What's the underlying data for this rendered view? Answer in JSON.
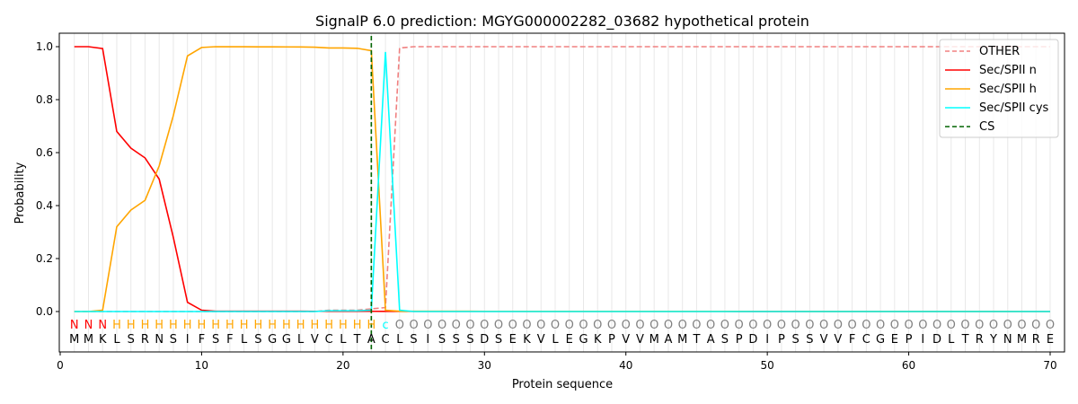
{
  "chart_data": {
    "type": "line",
    "title": "SignalP 6.0 prediction: MGYG000002282_03682 hypothetical protein",
    "xlabel": "Protein sequence",
    "ylabel": "Probability",
    "xlim": [
      0,
      71
    ],
    "ylim": [
      -0.15,
      1.05
    ],
    "xticks": [
      0,
      10,
      20,
      30,
      40,
      50,
      60,
      70
    ],
    "yticks": [
      "0.0",
      "0.2",
      "0.4",
      "0.6",
      "0.8",
      "1.0"
    ],
    "legend_position": "top-right",
    "sequence": "MMKLSRNSIFSFLSGGLVCLTACLSISSSDSEKVLEGKPVVMAMTASPDIPSSVVFCGEPIDLTRYNMRE",
    "labels": "NNNHHHHHHHHHHHHHHHHHHHcOOOOOOOOOOOOOOOOOOOOOOOOOOOOOOOOOOOOOOOOOOOOOOO",
    "label_colors": {
      "N": "#ff0000",
      "H": "#ffa500",
      "c": "#00ffff",
      "O": "#808080"
    },
    "cs_position": 22,
    "series": [
      {
        "name": "OTHER",
        "color": "#f08080",
        "dash": true,
        "values": {
          "0": 0,
          "18": 0,
          "19": 0.005,
          "20": 0.005,
          "21": 0.005,
          "22": 0.01,
          "23": 0.015,
          "24": 0.995,
          "25": 1.0,
          "70": 1.0
        }
      },
      {
        "name": "Sec/SPII n",
        "color": "#ff0000",
        "values": {
          "1": 1.0,
          "2": 1.0,
          "3": 0.993,
          "4": 0.68,
          "5": 0.617,
          "6": 0.58,
          "7": 0.5,
          "8": 0.28,
          "9": 0.035,
          "10": 0.005,
          "11": 0.001,
          "70": 0
        }
      },
      {
        "name": "Sec/SPII h",
        "color": "#ffa500",
        "values": {
          "1": 0,
          "2": 0,
          "3": 0.005,
          "4": 0.32,
          "5": 0.383,
          "6": 0.42,
          "7": 0.55,
          "8": 0.74,
          "9": 0.965,
          "10": 0.997,
          "11": 1.0,
          "17": 0.999,
          "18": 0.998,
          "19": 0.995,
          "20": 0.995,
          "21": 0.994,
          "22": 0.985,
          "23": 0.005,
          "24": 0.001,
          "70": 0
        }
      },
      {
        "name": "Sec/SPII cys",
        "color": "#00ffff",
        "values": {
          "1": 0,
          "18": 0,
          "19": 0.003,
          "20": 0.003,
          "21": 0.003,
          "22": 0.005,
          "23": 0.98,
          "24": 0.005,
          "25": 0,
          "70": 0
        }
      },
      {
        "name": "CS",
        "color": "#006400",
        "dash": true,
        "values": {}
      }
    ]
  }
}
